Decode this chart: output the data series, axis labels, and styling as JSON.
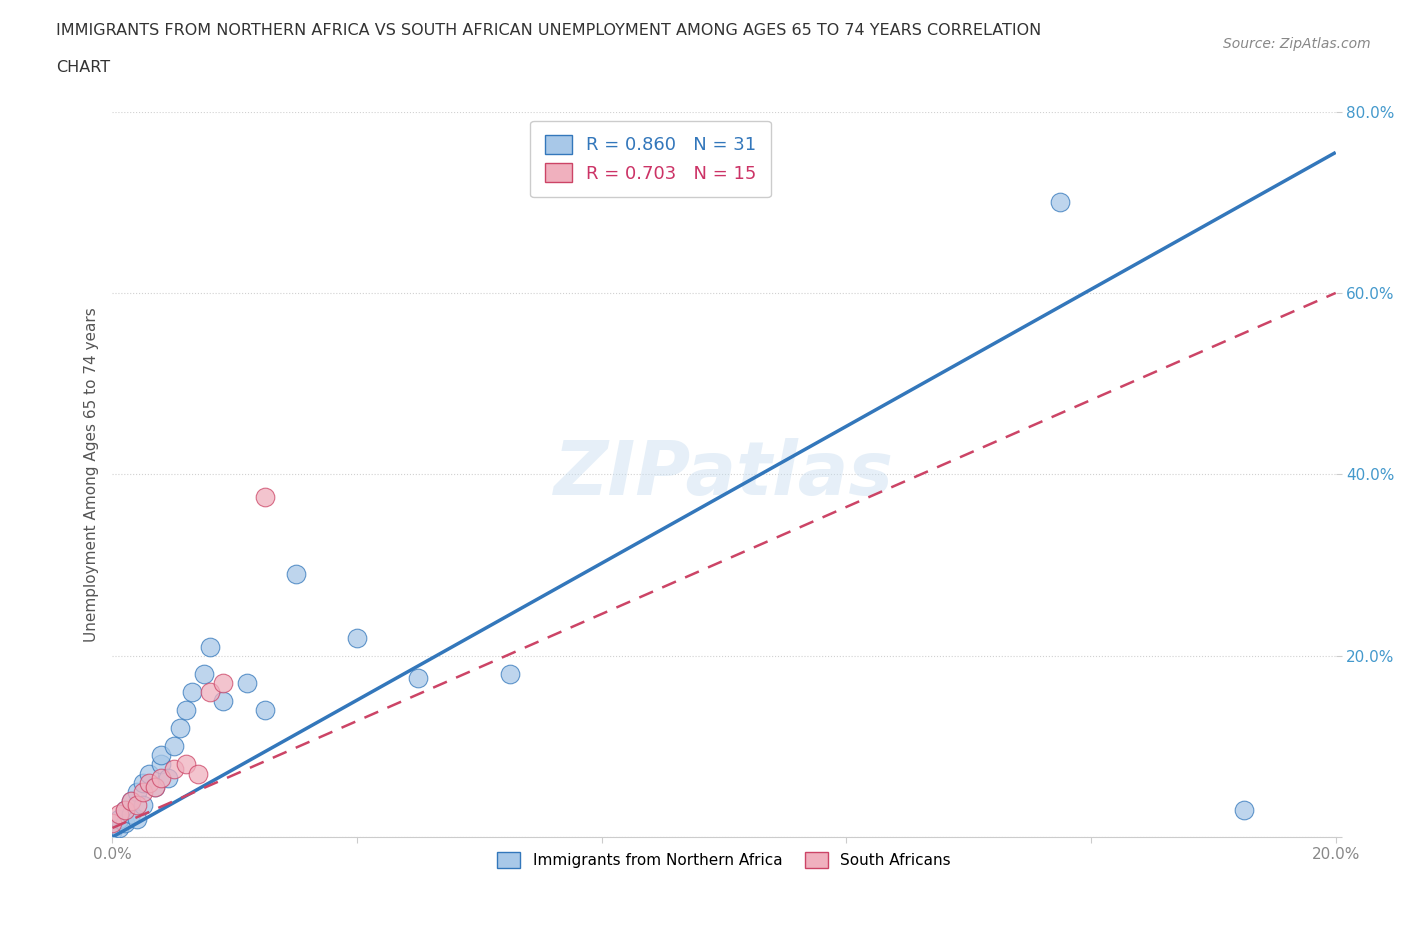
{
  "title_line1": "IMMIGRANTS FROM NORTHERN AFRICA VS SOUTH AFRICAN UNEMPLOYMENT AMONG AGES 65 TO 74 YEARS CORRELATION",
  "title_line2": "CHART",
  "source_text": "Source: ZipAtlas.com",
  "ylabel": "Unemployment Among Ages 65 to 74 years",
  "xlim": [
    0.0,
    0.2
  ],
  "ylim": [
    0.0,
    0.8
  ],
  "watermark": "ZIPatlas",
  "blue_R": 0.86,
  "blue_N": 31,
  "pink_R": 0.703,
  "pink_N": 15,
  "blue_color": "#a8c8e8",
  "pink_color": "#f0b0be",
  "blue_line_color": "#3377bb",
  "pink_line_color": "#cc4466",
  "blue_scatter_x": [
    0.0,
    0.001,
    0.001,
    0.002,
    0.002,
    0.003,
    0.003,
    0.004,
    0.004,
    0.005,
    0.005,
    0.006,
    0.007,
    0.008,
    0.008,
    0.009,
    0.01,
    0.011,
    0.012,
    0.013,
    0.015,
    0.016,
    0.018,
    0.022,
    0.025,
    0.03,
    0.04,
    0.05,
    0.065,
    0.155,
    0.185
  ],
  "blue_scatter_y": [
    0.005,
    0.01,
    0.02,
    0.015,
    0.03,
    0.025,
    0.04,
    0.02,
    0.05,
    0.035,
    0.06,
    0.07,
    0.055,
    0.08,
    0.09,
    0.065,
    0.1,
    0.12,
    0.14,
    0.16,
    0.18,
    0.21,
    0.15,
    0.17,
    0.14,
    0.29,
    0.22,
    0.175,
    0.18,
    0.7,
    0.03
  ],
  "pink_scatter_x": [
    0.0,
    0.001,
    0.002,
    0.003,
    0.004,
    0.005,
    0.006,
    0.007,
    0.008,
    0.01,
    0.012,
    0.014,
    0.016,
    0.018,
    0.025
  ],
  "pink_scatter_y": [
    0.015,
    0.025,
    0.03,
    0.04,
    0.035,
    0.05,
    0.06,
    0.055,
    0.065,
    0.075,
    0.08,
    0.07,
    0.16,
    0.17,
    0.375
  ],
  "blue_line_x0": 0.0,
  "blue_line_y0": 0.0,
  "blue_line_x1": 0.2,
  "blue_line_y1": 0.755,
  "pink_line_x0": 0.0,
  "pink_line_y0": 0.01,
  "pink_line_x1": 0.2,
  "pink_line_y1": 0.6,
  "legend_label_blue": "Immigrants from Northern Africa",
  "legend_label_pink": "South Africans",
  "ytick_color": "#4499cc",
  "xtick_color": "#888888",
  "grid_color": "#cccccc",
  "title_color": "#333333",
  "source_color": "#888888",
  "ylabel_color": "#555555",
  "watermark_color": "#c8ddf0"
}
